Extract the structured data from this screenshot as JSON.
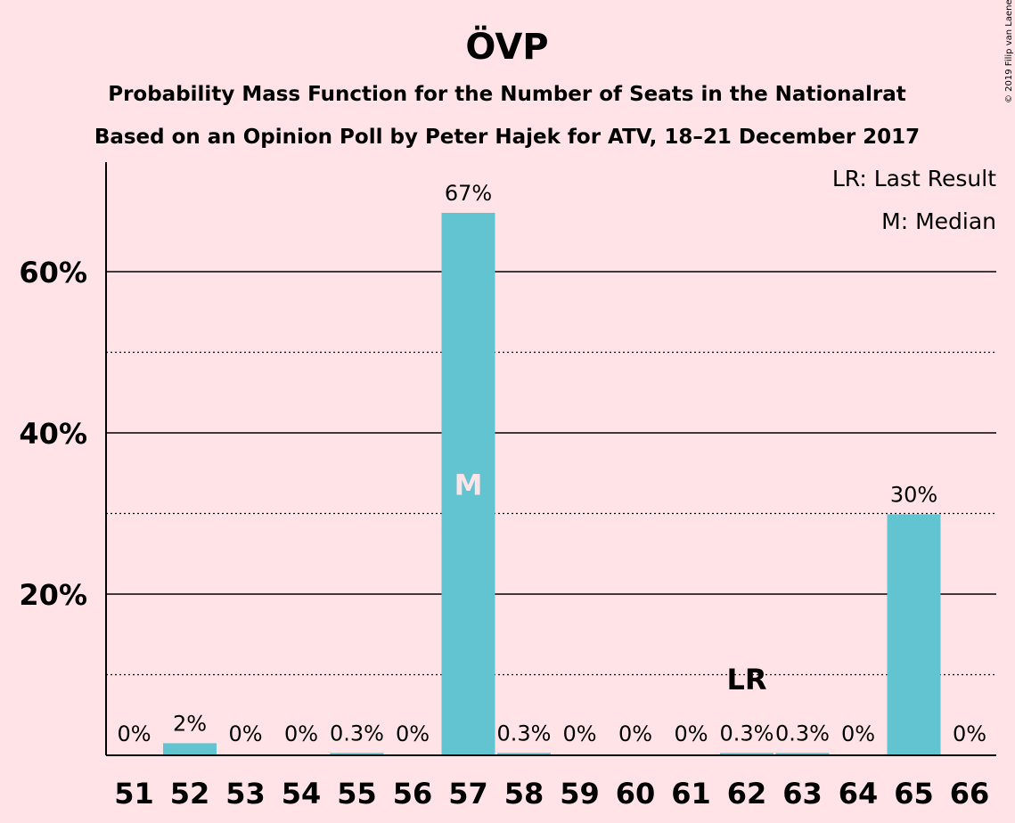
{
  "title": "ÖVP",
  "subtitle1": "Probability Mass Function for the Number of Seats in the Nationalrat",
  "subtitle2": "Based on an Opinion Poll by Peter Hajek for ATV, 18–21 December 2017",
  "copyright": "© 2019 Filip van Laenen",
  "legend": {
    "last_result": "LR: Last Result",
    "median": "M: Median"
  },
  "colors": {
    "background": "#FFE3E6",
    "bar": "#63C4D1",
    "text": "#1A0A0D"
  },
  "chart_data": {
    "type": "bar",
    "categories": [
      "51",
      "52",
      "53",
      "54",
      "55",
      "56",
      "57",
      "58",
      "59",
      "60",
      "61",
      "62",
      "63",
      "64",
      "65",
      "66"
    ],
    "values": [
      0,
      1.5,
      0,
      0,
      0.3,
      0,
      67.3,
      0.3,
      0,
      0,
      0,
      0.3,
      0.3,
      0,
      29.9,
      0
    ],
    "data_labels": [
      "0%",
      "2%",
      "0%",
      "0%",
      "0.3%",
      "0%",
      "67%",
      "0.3%",
      "0%",
      "0%",
      "0%",
      "0.3%",
      "0.3%",
      "0%",
      "30%",
      "0%"
    ],
    "ylim": [
      0,
      73
    ],
    "yticks": [
      20,
      40,
      60
    ],
    "ytick_labels": [
      "20%",
      "40%",
      "60%"
    ],
    "minor_gridlines": [
      10,
      30,
      50
    ],
    "median_category": "57",
    "median_marker": "M",
    "last_result_category": "62",
    "last_result_marker": "LR",
    "legend_position": "top-right"
  }
}
